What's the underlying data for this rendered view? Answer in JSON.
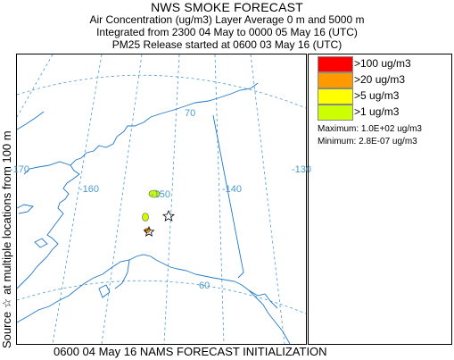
{
  "header": {
    "title": "NWS SMOKE FORECAST",
    "line2": "Air Concentration (ug/m3) Layer Average    0 m and  5000 m",
    "line3": "Integrated from 2300 04 May to 0000 05 May 16 (UTC)",
    "line4": "PM25 Release started at 0600 03 May 16 (UTC)"
  },
  "side_label": "Source ☆  at multiple locations  from   100 m",
  "footer": "0600 04 May 16 NAMS FORECAST INITIALIZATION",
  "map": {
    "grid_labels": [
      "70",
      "-170",
      "-160",
      "-150",
      "-140",
      "-130",
      "60"
    ],
    "grid_color": "#4a9bd1",
    "coast_color": "#1f78c8"
  },
  "legend": {
    "items": [
      {
        "label": ">100 ug/m3",
        "color": "#ff0000"
      },
      {
        "label": ">20 ug/m3",
        "color": "#ff9900"
      },
      {
        "label": ">5 ug/m3",
        "color": "#ffff00"
      },
      {
        "label": ">1 ug/m3",
        "color": "#ccff00"
      }
    ],
    "maximum": "Maximum: 1.0E+02 ug/m3",
    "minimum": "Minimum: 2.8E-07 ug/m3"
  }
}
